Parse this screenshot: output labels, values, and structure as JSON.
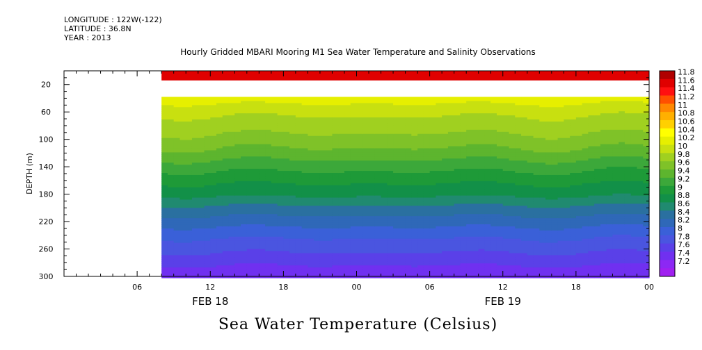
{
  "header": {
    "longitude": "LONGITUDE : 122W(-122)",
    "latitude": "LATITUDE : 36.8N",
    "year": "YEAR : 2013"
  },
  "chart_data": {
    "type": "heatmap",
    "title": "Hourly Gridded MBARI Mooring M1 Sea Water Temperature and Salinity Observations",
    "xlabel": "",
    "ylabel": "DEPTH (m)",
    "colorbar_title": "Sea Water Temperature (Celsius)",
    "x_range_hours": [
      0,
      48
    ],
    "x_range_labels": [
      "FEB 18 00",
      "FEB 20 00"
    ],
    "x_ticks": [
      "06",
      "12",
      "18",
      "00",
      "06",
      "12",
      "18",
      "00"
    ],
    "date_labels": [
      "FEB 18",
      "FEB 19"
    ],
    "y_range": [
      300,
      0
    ],
    "y_ticks": [
      "20",
      "60",
      "100",
      "140",
      "180",
      "220",
      "260",
      "300"
    ],
    "data_start_hour": 8,
    "near_surface_band": {
      "depth": 10,
      "value": 11.7
    },
    "data_gap_depth_range": [
      14,
      38
    ],
    "contour_levels": [
      7.2,
      7.4,
      7.6,
      7.8,
      8,
      8.2,
      8.4,
      8.6,
      8.8,
      9,
      9.2,
      9.4,
      9.6,
      9.8,
      10,
      10.2,
      10.4,
      10.6,
      10.8,
      11,
      11.2,
      11.4,
      11.6,
      11.8
    ],
    "colorbar_labels": [
      "11.8",
      "11.6",
      "11.4",
      "11.2",
      "11",
      "10.8",
      "10.6",
      "10.4",
      "10.2",
      "10",
      "9.8",
      "9.6",
      "9.4",
      "9.2",
      "9",
      "8.8",
      "8.6",
      "8.4",
      "8.2",
      "8",
      "7.8",
      "7.6",
      "7.4",
      "7.2"
    ],
    "colors": [
      "#a020f0",
      "#8c28f4",
      "#7030f0",
      "#5a40e8",
      "#4a55e0",
      "#3a60d8",
      "#2f68b8",
      "#2a70a0",
      "#208a70",
      "#129048",
      "#1e9a38",
      "#3ca83a",
      "#5db52e",
      "#7fc228",
      "#a0d020",
      "#c8e010",
      "#e6ef00",
      "#ffff00",
      "#ffd000",
      "#ffb000",
      "#ff8800",
      "#ff5000",
      "#ff1010",
      "#e00000",
      "#b00000"
    ],
    "profile_depths": [
      40,
      60,
      80,
      100,
      120,
      140,
      160,
      180,
      200,
      220,
      240,
      260,
      280,
      300
    ],
    "profile_values": [
      10.25,
      10.0,
      9.85,
      9.65,
      9.45,
      9.2,
      9.0,
      8.8,
      8.5,
      8.25,
      8.0,
      7.8,
      7.6,
      7.4
    ],
    "profile_values_warmest_column": [
      10.35,
      10.1,
      9.95,
      9.8,
      9.6,
      9.35,
      9.1,
      8.9,
      8.6,
      8.35,
      8.1,
      7.9,
      7.7,
      7.45
    ]
  }
}
